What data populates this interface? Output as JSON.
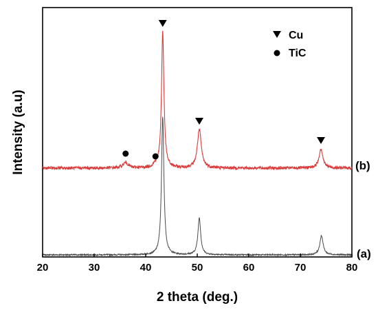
{
  "chart_data": {
    "type": "line",
    "title": "",
    "xlabel": "2 theta (deg.)",
    "ylabel": "Intensity (a.u)",
    "xlim": [
      20,
      80
    ],
    "xticks": [
      20,
      30,
      40,
      50,
      60,
      70,
      80
    ],
    "x_tick_labels": [
      "20",
      "30",
      "40",
      "50",
      "60",
      "70",
      "80"
    ],
    "y_tick_labels": "none",
    "grid": false,
    "legend_position": "top-right",
    "legend": [
      {
        "marker": "triangle-down",
        "label": "Cu"
      },
      {
        "marker": "circle",
        "label": "TiC"
      }
    ],
    "series": [
      {
        "label": "(a)",
        "color": "#4a4a4a",
        "baseline": 0,
        "peaks": [
          {
            "x": 43.3,
            "height": 100,
            "width": 0.28
          },
          {
            "x": 50.4,
            "height": 27,
            "width": 0.32
          },
          {
            "x": 74.1,
            "height": 14,
            "width": 0.38
          }
        ]
      },
      {
        "label": "(b)",
        "color": "#d93a3a",
        "baseline": 63,
        "peaks": [
          {
            "x": 36.1,
            "height": 4,
            "width": 0.6
          },
          {
            "x": 41.9,
            "height": 2,
            "width": 0.5
          },
          {
            "x": 43.3,
            "height": 99,
            "width": 0.28
          },
          {
            "x": 50.4,
            "height": 28,
            "width": 0.45
          },
          {
            "x": 74.0,
            "height": 14,
            "width": 0.45
          }
        ],
        "markers": [
          {
            "symbol": "triangle-down",
            "x": 43.3
          },
          {
            "symbol": "triangle-down",
            "x": 50.4
          },
          {
            "symbol": "triangle-down",
            "x": 74.0
          },
          {
            "symbol": "circle",
            "x": 36.1
          },
          {
            "symbol": "circle",
            "x": 41.9
          }
        ]
      }
    ],
    "ylim": [
      0,
      175
    ]
  }
}
